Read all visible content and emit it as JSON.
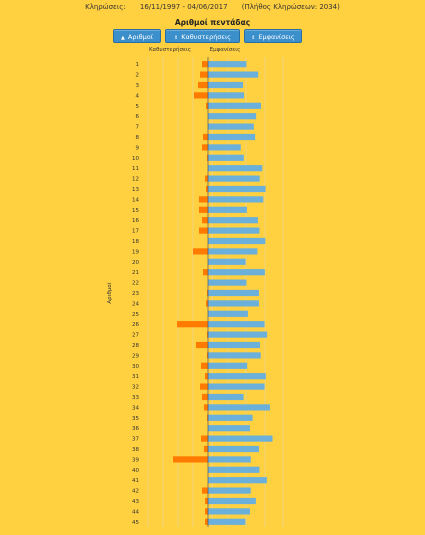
{
  "header": {
    "label": "Κληρώσεις:",
    "range": "16/11/1997 - 04/06/2017",
    "count_text": "(Πλήθος Κληρώσεων: 2034)"
  },
  "controls": {
    "numbers_label": "Αριθμοί",
    "delays_label": "Καθυστερήσεις",
    "appearances_label": "Εμφανίσεις",
    "active": "numbers"
  },
  "colors": {
    "background": "#FFD040",
    "delay_bar": "#FF7A00",
    "appearance_bar": "#6BB0DA",
    "button": "#3B8FCB",
    "grid": "#E8D9A8"
  },
  "chart_data": {
    "type": "bar",
    "title": "Αριθμοί πεντάδας",
    "ylabel": "Αριθμοί",
    "left_header": "Καθυστερήσεις",
    "right_header": "Εμφανίσεις",
    "categories": [
      "1",
      "2",
      "3",
      "4",
      "5",
      "6",
      "7",
      "8",
      "9",
      "10",
      "11",
      "12",
      "13",
      "14",
      "15",
      "16",
      "17",
      "18",
      "19",
      "20",
      "21",
      "22",
      "23",
      "24",
      "25",
      "26",
      "27",
      "28",
      "29",
      "30",
      "31",
      "32",
      "33",
      "34",
      "35",
      "36",
      "37",
      "38",
      "39",
      "40",
      "41",
      "42",
      "43",
      "44",
      "45"
    ],
    "series": [
      {
        "name": "Καθυστερήσεις",
        "values": [
          6,
          8,
          10,
          14,
          2,
          0,
          0,
          5,
          6,
          1,
          0,
          3,
          2,
          9,
          9,
          6,
          9,
          0,
          15,
          0,
          5,
          0,
          1,
          2,
          0,
          31,
          1,
          12,
          1,
          7,
          3,
          8,
          6,
          4,
          1,
          0,
          7,
          4,
          35,
          0,
          0,
          6,
          3,
          3,
          3
        ]
      },
      {
        "name": "Εμφανίσεις",
        "values": [
          150,
          196,
          137,
          141,
          207,
          188,
          179,
          184,
          128,
          140,
          212,
          202,
          225,
          216,
          152,
          195,
          201,
          224,
          193,
          147,
          222,
          150,
          199,
          199,
          156,
          221,
          231,
          203,
          206,
          153,
          226,
          221,
          139,
          242,
          174,
          164,
          252,
          199,
          167,
          201,
          230,
          167,
          187,
          164,
          146
        ]
      }
    ],
    "x_ticks_left": [
      "60",
      "45",
      "30",
      "15"
    ],
    "x_ticks_right": [
      "0",
      "90",
      "170",
      "230",
      "250",
      "270"
    ],
    "delay_max": 60,
    "appearance_min": 90,
    "appearance_max": 270,
    "grid": true
  }
}
